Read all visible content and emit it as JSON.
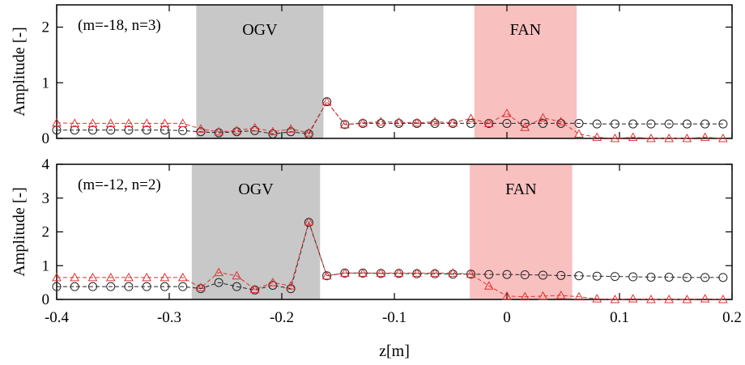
{
  "chart_data": {
    "type": "line",
    "xlabel": "z[m]",
    "xlim": [
      -0.4,
      0.2
    ],
    "x_ticks": [
      "-0.4",
      "-0.3",
      "-0.2",
      "-0.1",
      "0",
      "0.1",
      "0.2"
    ],
    "regions": [
      {
        "label": "OGV",
        "x_range": [
          -0.275,
          -0.165
        ],
        "color": "#c8c8c8"
      },
      {
        "label": "FAN",
        "x_range": [
          -0.03,
          0.06
        ],
        "color": "#f9c0c0"
      }
    ],
    "colors": {
      "black_series": "#222222",
      "red_series": "#e03030"
    },
    "panels": [
      {
        "title": "(m=-18, n=3)",
        "ylabel": "Amplitude [-]",
        "ylim": [
          0,
          2.4
        ],
        "y_ticks": [
          "0",
          "1",
          "2"
        ],
        "regions": [
          {
            "label": "OGV",
            "x_range": [
              -0.276,
              -0.163
            ]
          },
          {
            "label": "FAN",
            "x_range": [
              -0.029,
              0.062
            ]
          }
        ],
        "series": [
          {
            "marker": "circle",
            "color": "#222222",
            "x": [
              -0.4,
              -0.384,
              -0.368,
              -0.352,
              -0.336,
              -0.32,
              -0.304,
              -0.288,
              -0.272,
              -0.256,
              -0.24,
              -0.224,
              -0.208,
              -0.192,
              -0.176,
              -0.16,
              -0.144,
              -0.128,
              -0.112,
              -0.096,
              -0.08,
              -0.064,
              -0.048,
              -0.032,
              -0.016,
              0.0,
              0.016,
              0.032,
              0.048,
              0.064,
              0.08,
              0.096,
              0.112,
              0.128,
              0.144,
              0.16,
              0.176,
              0.192
            ],
            "y": [
              0.15,
              0.15,
              0.15,
              0.15,
              0.15,
              0.15,
              0.15,
              0.14,
              0.12,
              0.1,
              0.12,
              0.14,
              0.08,
              0.12,
              0.08,
              0.66,
              0.25,
              0.27,
              0.27,
              0.27,
              0.27,
              0.27,
              0.27,
              0.27,
              0.27,
              0.27,
              0.27,
              0.27,
              0.27,
              0.27,
              0.26,
              0.26,
              0.26,
              0.26,
              0.26,
              0.26,
              0.26,
              0.26
            ]
          },
          {
            "marker": "triangle",
            "color": "#e03030",
            "x": [
              -0.4,
              -0.384,
              -0.368,
              -0.352,
              -0.336,
              -0.32,
              -0.304,
              -0.288,
              -0.272,
              -0.256,
              -0.24,
              -0.224,
              -0.208,
              -0.192,
              -0.176,
              -0.16,
              -0.144,
              -0.128,
              -0.112,
              -0.096,
              -0.08,
              -0.064,
              -0.048,
              -0.032,
              -0.016,
              0.0,
              0.016,
              0.032,
              0.048,
              0.064,
              0.08,
              0.096,
              0.112,
              0.128,
              0.144,
              0.16,
              0.176,
              0.192
            ],
            "y": [
              0.28,
              0.27,
              0.27,
              0.27,
              0.27,
              0.27,
              0.27,
              0.27,
              0.17,
              0.12,
              0.14,
              0.19,
              0.12,
              0.17,
              0.1,
              0.66,
              0.25,
              0.28,
              0.3,
              0.29,
              0.28,
              0.3,
              0.28,
              0.36,
              0.27,
              0.45,
              0.2,
              0.37,
              0.3,
              0.08,
              0.02,
              0.0,
              0.02,
              0.0,
              0.0,
              0.0,
              0.02,
              0.0
            ]
          }
        ]
      },
      {
        "title": "(m=-12, n=2)",
        "ylabel": "Amplitude [-]",
        "ylim": [
          0,
          4
        ],
        "y_ticks": [
          "0",
          "1",
          "2",
          "3",
          "4"
        ],
        "regions": [
          {
            "label": "OGV",
            "x_range": [
              -0.28,
              -0.166
            ]
          },
          {
            "label": "FAN",
            "x_range": [
              -0.033,
              0.058
            ]
          }
        ],
        "series": [
          {
            "marker": "circle",
            "color": "#222222",
            "x": [
              -0.4,
              -0.384,
              -0.368,
              -0.352,
              -0.336,
              -0.32,
              -0.304,
              -0.288,
              -0.272,
              -0.256,
              -0.24,
              -0.224,
              -0.208,
              -0.192,
              -0.176,
              -0.16,
              -0.144,
              -0.128,
              -0.112,
              -0.096,
              -0.08,
              -0.064,
              -0.048,
              -0.032,
              -0.016,
              0.0,
              0.016,
              0.032,
              0.048,
              0.064,
              0.08,
              0.096,
              0.112,
              0.128,
              0.144,
              0.16,
              0.176,
              0.192
            ],
            "y": [
              0.38,
              0.38,
              0.38,
              0.38,
              0.38,
              0.38,
              0.38,
              0.38,
              0.32,
              0.5,
              0.38,
              0.28,
              0.42,
              0.32,
              2.28,
              0.7,
              0.78,
              0.78,
              0.77,
              0.77,
              0.76,
              0.76,
              0.75,
              0.75,
              0.74,
              0.74,
              0.73,
              0.72,
              0.71,
              0.7,
              0.69,
              0.68,
              0.67,
              0.66,
              0.66,
              0.65,
              0.65,
              0.65
            ]
          },
          {
            "marker": "triangle",
            "color": "#e03030",
            "x": [
              -0.4,
              -0.384,
              -0.368,
              -0.352,
              -0.336,
              -0.32,
              -0.304,
              -0.288,
              -0.272,
              -0.256,
              -0.24,
              -0.224,
              -0.208,
              -0.192,
              -0.176,
              -0.16,
              -0.144,
              -0.128,
              -0.112,
              -0.096,
              -0.08,
              -0.064,
              -0.048,
              -0.032,
              -0.016,
              0.0,
              0.016,
              0.032,
              0.048,
              0.064,
              0.08,
              0.096,
              0.112,
              0.128,
              0.144,
              0.16,
              0.176,
              0.192
            ],
            "y": [
              0.65,
              0.65,
              0.65,
              0.65,
              0.65,
              0.65,
              0.65,
              0.65,
              0.35,
              0.8,
              0.7,
              0.3,
              0.5,
              0.4,
              2.3,
              0.7,
              0.78,
              0.78,
              0.78,
              0.78,
              0.78,
              0.78,
              0.78,
              0.75,
              0.4,
              0.1,
              0.08,
              0.1,
              0.12,
              0.08,
              0.02,
              0.0,
              0.02,
              0.0,
              0.0,
              0.0,
              0.02,
              0.0
            ]
          }
        ]
      }
    ]
  }
}
